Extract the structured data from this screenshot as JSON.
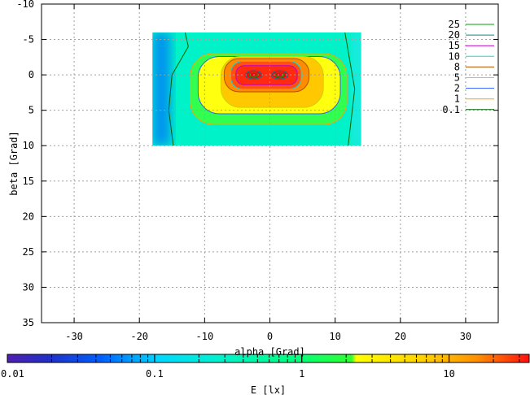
{
  "chart_data": {
    "type": "heatmap",
    "title": "",
    "xlabel": "alpha [Grad]",
    "ylabel": "beta [Grad]",
    "xlim": [
      -35,
      35
    ],
    "ylim": [
      -10,
      35
    ],
    "y_axis_inverted": true,
    "grid": true,
    "x_ticks": [
      "-30",
      "-20",
      "-10",
      "0",
      "10",
      "20",
      "30"
    ],
    "y_ticks": [
      "-10",
      "-5",
      "0",
      "5",
      "10",
      "15",
      "20",
      "25",
      "30",
      "35"
    ],
    "data_extent": {
      "alpha": [
        -18,
        14
      ],
      "beta": [
        -6,
        10
      ]
    },
    "legend_placement": "top-right",
    "contours": [
      {
        "level": "25",
        "color": "#00a000"
      },
      {
        "level": "20",
        "color": "#008a8a"
      },
      {
        "level": "15",
        "color": "#c000c0"
      },
      {
        "level": "10",
        "color": "#00e0e0"
      },
      {
        "level": "8",
        "color": "#b05000"
      },
      {
        "level": "5",
        "color": "#d0d000"
      },
      {
        "level": "2",
        "color": "#3060ff"
      },
      {
        "level": "1",
        "color": "#ffa000"
      },
      {
        "level": "0.1",
        "color": "#006000"
      }
    ],
    "hotspots": [
      {
        "alpha": -2.5,
        "beta": 0
      },
      {
        "alpha": 1.5,
        "beta": 0
      }
    ],
    "colorbar": {
      "label": "E [lx]",
      "scale": "log",
      "range": [
        0.01,
        35
      ],
      "ticks": [
        "0.01",
        "0.1",
        "1",
        "10"
      ]
    }
  }
}
